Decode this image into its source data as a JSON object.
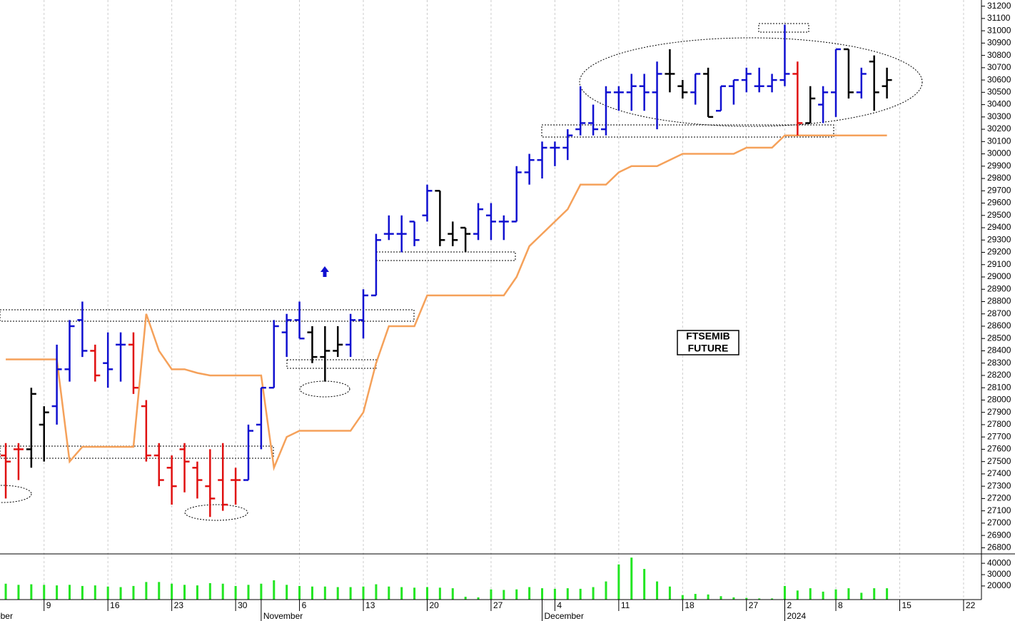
{
  "chart_data": [
    {
      "type": "ohlc",
      "annotation": [
        "FTSEMIB",
        "FUTURE"
      ],
      "xlim": [
        -0.45,
        76.4
      ],
      "xticks": [
        {
          "value": 3,
          "label": "9"
        },
        {
          "value": 8,
          "label": "16"
        },
        {
          "value": 13,
          "label": "23"
        },
        {
          "value": 18,
          "label": "30"
        },
        {
          "value": 23,
          "label": "6"
        },
        {
          "value": 28,
          "label": "13"
        },
        {
          "value": 33,
          "label": "20"
        },
        {
          "value": 38,
          "label": "27"
        },
        {
          "value": 43,
          "label": "4"
        },
        {
          "value": 48,
          "label": "11"
        },
        {
          "value": 53,
          "label": "18"
        },
        {
          "value": 58,
          "label": "27"
        },
        {
          "value": 61,
          "label": "2"
        },
        {
          "value": 65,
          "label": "8"
        },
        {
          "value": 70,
          "label": "15"
        },
        {
          "value": 75,
          "label": "22"
        }
      ],
      "month_ticks": [
        {
          "value": -2,
          "label": "October"
        },
        {
          "value": 20,
          "label": "November"
        },
        {
          "value": 42,
          "label": "December"
        },
        {
          "value": 61,
          "label": "2024"
        }
      ],
      "ylim": [
        26750,
        31250
      ],
      "yticks": [
        26800,
        26900,
        27000,
        27100,
        27200,
        27300,
        27400,
        27500,
        27600,
        27700,
        27800,
        27900,
        28000,
        28100,
        28200,
        28300,
        28400,
        28500,
        28600,
        28700,
        28800,
        28900,
        29000,
        29100,
        29200,
        29300,
        29400,
        29500,
        29600,
        29700,
        29800,
        29900,
        30000,
        30100,
        30200,
        30300,
        30400,
        30500,
        30600,
        30700,
        30800,
        30900,
        31000,
        31100,
        31200
      ],
      "grid": true,
      "open": [
        27550,
        27600,
        27600,
        27800,
        27950,
        28250,
        28650,
        28400,
        28300,
        28450,
        28450,
        27950,
        27550,
        27450,
        27600,
        27450,
        27300,
        27350,
        27350,
        27350,
        27800,
        28100,
        28550,
        28650,
        28550,
        28350,
        28400,
        28450,
        28650,
        28850,
        29350,
        29350,
        29450,
        29500,
        29700,
        29350,
        29400,
        29350,
        29500,
        29450,
        29450,
        29850,
        29950,
        30050,
        30050,
        30200,
        30250,
        30200,
        30500,
        30500,
        30550,
        30500,
        30650,
        30550,
        30500,
        30650,
        30350,
        30550,
        30600,
        30550,
        30550,
        30600,
        30650,
        30250,
        30400,
        30500,
        30850,
        30500,
        30750,
        30550
      ],
      "high": [
        27650,
        27650,
        28100,
        27950,
        28450,
        28650,
        28800,
        28450,
        28550,
        28550,
        28550,
        28000,
        27650,
        27550,
        27650,
        27500,
        27600,
        27650,
        27450,
        27800,
        28100,
        28650,
        28700,
        28800,
        28600,
        28600,
        28600,
        28700,
        28900,
        29350,
        29500,
        29500,
        29450,
        29750,
        29700,
        29450,
        29400,
        29600,
        29600,
        29500,
        29900,
        30000,
        30100,
        30100,
        30200,
        30550,
        30400,
        30550,
        30550,
        30650,
        30650,
        30750,
        30850,
        30600,
        30650,
        30700,
        30550,
        30600,
        30700,
        30700,
        30650,
        31050,
        30750,
        30550,
        30550,
        30850,
        30850,
        30700,
        30800,
        30700
      ],
      "low": [
        27200,
        27350,
        27450,
        27500,
        27800,
        28150,
        28350,
        28150,
        28100,
        28150,
        28050,
        27500,
        27300,
        27150,
        27250,
        27200,
        27050,
        27100,
        27150,
        27350,
        27600,
        28100,
        28350,
        28500,
        28300,
        28150,
        28350,
        28350,
        28500,
        28850,
        29300,
        29200,
        29250,
        29450,
        29250,
        29250,
        29200,
        29300,
        29300,
        29300,
        29450,
        29750,
        29800,
        29900,
        29950,
        30150,
        30150,
        30150,
        30350,
        30350,
        30350,
        30200,
        30500,
        30450,
        30400,
        30300,
        30350,
        30400,
        30500,
        30500,
        30500,
        30550,
        30150,
        30250,
        30250,
        30300,
        30450,
        30450,
        30350,
        30450
      ],
      "close": [
        27500,
        27600,
        28050,
        27900,
        28250,
        28600,
        28400,
        28200,
        28250,
        28450,
        28100,
        27550,
        27350,
        27300,
        27500,
        27350,
        27200,
        27150,
        27350,
        27750,
        28100,
        28600,
        28650,
        28500,
        28350,
        28400,
        28450,
        28650,
        28850,
        29300,
        29350,
        29350,
        29300,
        29700,
        29300,
        29300,
        29350,
        29550,
        29450,
        29450,
        29850,
        29950,
        30050,
        30050,
        30150,
        30250,
        30200,
        30500,
        30500,
        30550,
        30500,
        30650,
        30650,
        30500,
        30650,
        30300,
        30550,
        30600,
        30650,
        30550,
        30600,
        30650,
        30250,
        30450,
        30500,
        30850,
        30500,
        30650,
        30500,
        30600
      ],
      "colors": [
        "#e01010",
        "#e01010",
        "#000000",
        "#000000",
        "#1010d0",
        "#1010d0",
        "#1010d0",
        "#e01010",
        "#1010d0",
        "#1010d0",
        "#e01010",
        "#e01010",
        "#e01010",
        "#e01010",
        "#e01010",
        "#e01010",
        "#e01010",
        "#e01010",
        "#e01010",
        "#1010d0",
        "#1010d0",
        "#1010d0",
        "#1010d0",
        "#1010d0",
        "#000000",
        "#000000",
        "#000000",
        "#1010d0",
        "#1010d0",
        "#1010d0",
        "#1010d0",
        "#1010d0",
        "#1010d0",
        "#1010d0",
        "#000000",
        "#000000",
        "#000000",
        "#1010d0",
        "#1010d0",
        "#1010d0",
        "#1010d0",
        "#1010d0",
        "#1010d0",
        "#1010d0",
        "#1010d0",
        "#1010d0",
        "#1010d0",
        "#1010d0",
        "#1010d0",
        "#1010d0",
        "#1010d0",
        "#1010d0",
        "#000000",
        "#000000",
        "#1010d0",
        "#000000",
        "#1010d0",
        "#1010d0",
        "#1010d0",
        "#1010d0",
        "#1010d0",
        "#1010d0",
        "#e01010",
        "#000000",
        "#1010d0",
        "#1010d0",
        "#000000",
        "#1010d0",
        "#000000",
        "#000000"
      ],
      "line": {
        "color": "#f5a15a",
        "values": [
          28330,
          28330,
          28330,
          28330,
          28330,
          27500,
          27620,
          27620,
          27620,
          27620,
          27620,
          28700,
          28400,
          28250,
          28250,
          28220,
          28200,
          28200,
          28200,
          28200,
          28200,
          27450,
          27700,
          27750,
          27750,
          27750,
          27750,
          27750,
          27900,
          28300,
          28600,
          28600,
          28600,
          28850,
          28850,
          28850,
          28850,
          28850,
          28850,
          28850,
          29000,
          29250,
          29350,
          29450,
          29550,
          29750,
          29750,
          29750,
          29850,
          29900,
          29900,
          29900,
          29950,
          30000,
          30000,
          30000,
          30000,
          30000,
          30050,
          30050,
          30050,
          30150,
          30150,
          30150,
          30150,
          30150,
          30150,
          30150,
          30150,
          30150
        ]
      }
    },
    {
      "type": "bar",
      "color": "#22e622",
      "ylim": [
        8000,
        47000
      ],
      "yticks": [
        20000,
        30000,
        40000
      ],
      "values": [
        22000,
        21000,
        21500,
        21000,
        20500,
        21000,
        20000,
        20500,
        19500,
        19000,
        20000,
        23500,
        23500,
        22000,
        21000,
        20500,
        22500,
        22000,
        20000,
        21000,
        22000,
        25000,
        21000,
        20000,
        19500,
        19500,
        19000,
        19000,
        19500,
        21500,
        19500,
        19000,
        18500,
        19000,
        18500,
        18000,
        10500,
        10000,
        17000,
        16500,
        17000,
        19000,
        18000,
        17500,
        18000,
        17500,
        19000,
        24000,
        39000,
        45000,
        35000,
        24000,
        19500,
        12000,
        13000,
        12500,
        11000,
        10000,
        9500,
        9000,
        9000,
        20000,
        16000,
        18000,
        15000,
        17000,
        18000,
        14000,
        18000,
        18000
      ]
    }
  ]
}
